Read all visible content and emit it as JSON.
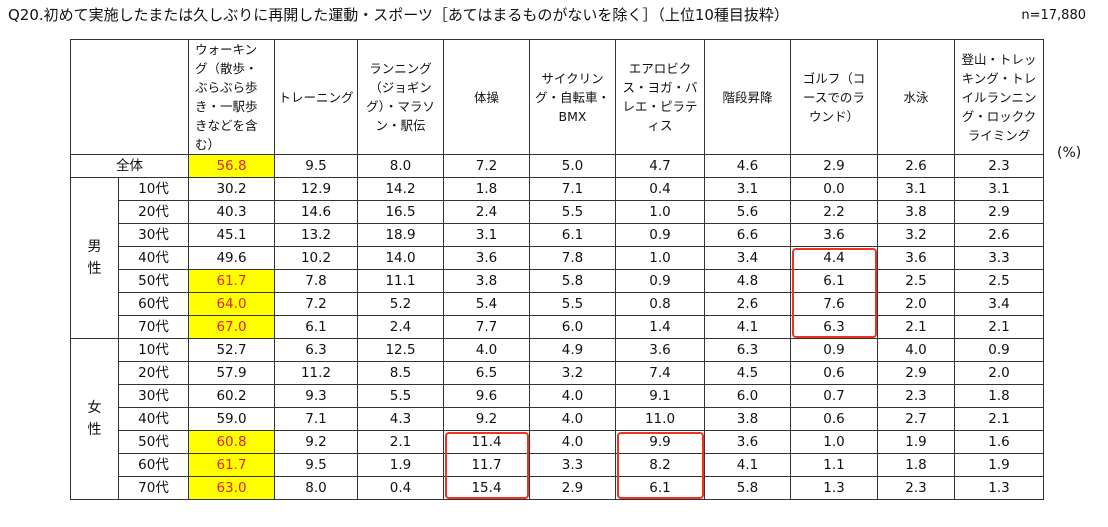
{
  "title": "Q20.初めて実施したまたは久しぶりに再開した運動・スポーツ［あてはまるものがないを除く］（上位10種目抜粋）",
  "n_label": "n=17,880",
  "unit": "(%)",
  "chart_data": {
    "type": "table",
    "columns": [
      "ウォーキング（散歩・ぶらぶら歩き・一駅歩きなどを含む）",
      "トレーニング",
      "ランニング（ジョギング）・マラソン・駅伝",
      "体操",
      "サイクリング・自転車・BMX",
      "エアロビクス・ヨガ・バレエ・ピラティス",
      "階段昇降",
      "ゴルフ（コースでのラウンド）",
      "水泳",
      "登山・トレッキング・トレイルランニング・ロッククライミング"
    ],
    "groups": {
      "male": "男性",
      "female": "女性"
    },
    "rows": [
      {
        "group": "",
        "label": "全体",
        "values": [
          "56.8",
          "9.5",
          "8.0",
          "7.2",
          "5.0",
          "4.7",
          "4.6",
          "2.9",
          "2.6",
          "2.3"
        ]
      },
      {
        "group": "男性",
        "label": "10代",
        "values": [
          "30.2",
          "12.9",
          "14.2",
          "1.8",
          "7.1",
          "0.4",
          "3.1",
          "0.0",
          "3.1",
          "3.1"
        ]
      },
      {
        "group": "男性",
        "label": "20代",
        "values": [
          "40.3",
          "14.6",
          "16.5",
          "2.4",
          "5.5",
          "1.0",
          "5.6",
          "2.2",
          "3.8",
          "2.9"
        ]
      },
      {
        "group": "男性",
        "label": "30代",
        "values": [
          "45.1",
          "13.2",
          "18.9",
          "3.1",
          "6.1",
          "0.9",
          "6.6",
          "3.6",
          "3.2",
          "2.6"
        ]
      },
      {
        "group": "男性",
        "label": "40代",
        "values": [
          "49.6",
          "10.2",
          "14.0",
          "3.6",
          "7.8",
          "1.0",
          "3.4",
          "4.4",
          "3.6",
          "3.3"
        ]
      },
      {
        "group": "男性",
        "label": "50代",
        "values": [
          "61.7",
          "7.8",
          "11.1",
          "3.8",
          "5.8",
          "0.9",
          "4.8",
          "6.1",
          "2.5",
          "2.5"
        ]
      },
      {
        "group": "男性",
        "label": "60代",
        "values": [
          "64.0",
          "7.2",
          "5.2",
          "5.4",
          "5.5",
          "0.8",
          "2.6",
          "7.6",
          "2.0",
          "3.4"
        ]
      },
      {
        "group": "男性",
        "label": "70代",
        "values": [
          "67.0",
          "6.1",
          "2.4",
          "7.7",
          "6.0",
          "1.4",
          "4.1",
          "6.3",
          "2.1",
          "2.1"
        ]
      },
      {
        "group": "女性",
        "label": "10代",
        "values": [
          "52.7",
          "6.3",
          "12.5",
          "4.0",
          "4.9",
          "3.6",
          "6.3",
          "0.9",
          "4.0",
          "0.9"
        ]
      },
      {
        "group": "女性",
        "label": "20代",
        "values": [
          "57.9",
          "11.2",
          "8.5",
          "6.5",
          "3.2",
          "7.4",
          "4.5",
          "0.6",
          "2.9",
          "2.0"
        ]
      },
      {
        "group": "女性",
        "label": "30代",
        "values": [
          "60.2",
          "9.3",
          "5.5",
          "9.6",
          "4.0",
          "9.1",
          "6.0",
          "0.7",
          "2.3",
          "1.8"
        ]
      },
      {
        "group": "女性",
        "label": "40代",
        "values": [
          "59.0",
          "7.1",
          "4.3",
          "9.2",
          "4.0",
          "11.0",
          "3.8",
          "0.6",
          "2.7",
          "2.1"
        ]
      },
      {
        "group": "女性",
        "label": "50代",
        "values": [
          "60.8",
          "9.2",
          "2.1",
          "11.4",
          "4.0",
          "9.9",
          "3.6",
          "1.0",
          "1.9",
          "1.6"
        ]
      },
      {
        "group": "女性",
        "label": "60代",
        "values": [
          "61.7",
          "9.5",
          "1.9",
          "11.7",
          "3.3",
          "8.2",
          "4.1",
          "1.1",
          "1.8",
          "1.9"
        ]
      },
      {
        "group": "女性",
        "label": "70代",
        "values": [
          "63.0",
          "8.0",
          "0.4",
          "15.4",
          "2.9",
          "6.1",
          "5.8",
          "1.3",
          "2.3",
          "1.3"
        ]
      }
    ],
    "yellow_highlight_cells": [
      [
        0,
        0
      ],
      [
        5,
        0
      ],
      [
        6,
        0
      ],
      [
        7,
        0
      ],
      [
        12,
        0
      ],
      [
        13,
        0
      ],
      [
        14,
        0
      ]
    ],
    "red_boxes": [
      {
        "column": 7,
        "rows": [
          4,
          7
        ]
      },
      {
        "column": 3,
        "rows": [
          12,
          14
        ]
      },
      {
        "column": 5,
        "rows": [
          12,
          14
        ]
      }
    ],
    "colors": {
      "highlight_fill": "#ffff00",
      "highlight_text": "#e02020",
      "box_border": "#ee3322"
    }
  }
}
